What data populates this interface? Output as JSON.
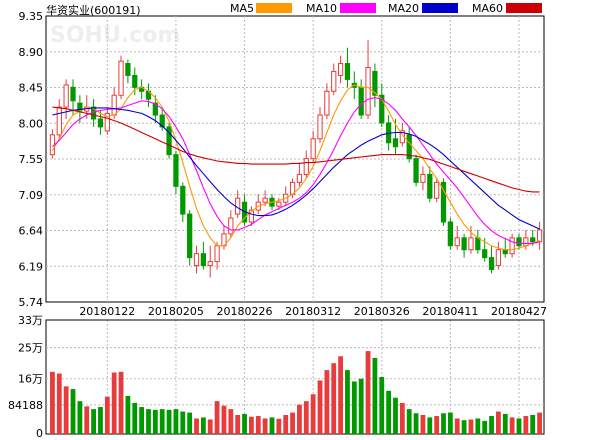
{
  "chart_data": {
    "type": "candlestick",
    "title": "华资实业(600191)",
    "watermark": "SOHU.com",
    "legend": [
      {
        "name": "MA5",
        "color": "#ff9900"
      },
      {
        "name": "MA10",
        "color": "#ff00ff"
      },
      {
        "name": "MA20",
        "color": "#0000cc"
      },
      {
        "name": "MA60",
        "color": "#cc0000"
      }
    ],
    "colors": {
      "up": "#e83c3c",
      "down": "#009900",
      "grid": "#bbbbbb",
      "axis": "#000000"
    },
    "price_ticks": [
      "9.35",
      "8.90",
      "8.45",
      "8.00",
      "7.55",
      "7.09",
      "6.64",
      "6.19",
      "5.74"
    ],
    "price_range": [
      5.74,
      9.35
    ],
    "date_labels": [
      {
        "label": "20180122",
        "index": 8
      },
      {
        "label": "20180205",
        "index": 18
      },
      {
        "label": "20180226",
        "index": 28
      },
      {
        "label": "20180312",
        "index": 38
      },
      {
        "label": "20180326",
        "index": 48
      },
      {
        "label": "20180411",
        "index": 58
      },
      {
        "label": "20180427",
        "index": 68
      }
    ],
    "volume_ticks": [
      "33万",
      "25万",
      "16万",
      "84188",
      "0"
    ],
    "volume_range": [
      0,
      330000
    ],
    "candles": [
      [
        7.6,
        7.85,
        7.55,
        7.92
      ],
      [
        7.85,
        8.2,
        7.8,
        8.3
      ],
      [
        8.2,
        8.48,
        8.05,
        8.55
      ],
      [
        8.45,
        8.28,
        8.1,
        8.55
      ],
      [
        8.25,
        8.15,
        8.0,
        8.35
      ],
      [
        8.15,
        8.2,
        8.05,
        8.35
      ],
      [
        8.2,
        8.05,
        7.95,
        8.3
      ],
      [
        8.05,
        7.95,
        7.85,
        8.15
      ],
      [
        7.9,
        8.12,
        7.85,
        8.2
      ],
      [
        8.1,
        8.35,
        8.05,
        8.45
      ],
      [
        8.35,
        8.78,
        8.3,
        8.85
      ],
      [
        8.75,
        8.6,
        8.5,
        8.8
      ],
      [
        8.6,
        8.45,
        8.35,
        8.7
      ],
      [
        8.45,
        8.4,
        8.3,
        8.55
      ],
      [
        8.4,
        8.3,
        8.2,
        8.5
      ],
      [
        8.25,
        8.1,
        8.0,
        8.35
      ],
      [
        8.1,
        7.95,
        7.9,
        8.2
      ],
      [
        7.95,
        7.6,
        7.55,
        8.0
      ],
      [
        7.6,
        7.2,
        7.1,
        7.65
      ],
      [
        7.2,
        6.85,
        6.75,
        7.25
      ],
      [
        6.85,
        6.3,
        6.2,
        6.9
      ],
      [
        6.2,
        6.35,
        6.1,
        6.45
      ],
      [
        6.35,
        6.2,
        6.15,
        6.5
      ],
      [
        6.2,
        6.25,
        6.05,
        6.45
      ],
      [
        6.25,
        6.45,
        6.15,
        6.5
      ],
      [
        6.45,
        6.6,
        6.4,
        6.7
      ],
      [
        6.6,
        6.8,
        6.55,
        6.9
      ],
      [
        6.85,
        7.05,
        6.8,
        7.15
      ],
      [
        7.0,
        6.75,
        6.7,
        7.1
      ],
      [
        6.75,
        6.9,
        6.7,
        6.95
      ],
      [
        6.9,
        7.0,
        6.85,
        7.1
      ],
      [
        7.0,
        7.05,
        6.95,
        7.15
      ],
      [
        7.05,
        6.95,
        6.9,
        7.1
      ],
      [
        6.95,
        7.0,
        6.9,
        7.05
      ],
      [
        7.0,
        7.1,
        6.95,
        7.2
      ],
      [
        7.1,
        7.25,
        7.05,
        7.3
      ],
      [
        7.25,
        7.35,
        7.2,
        7.5
      ],
      [
        7.35,
        7.55,
        7.3,
        7.65
      ],
      [
        7.55,
        7.8,
        7.5,
        7.9
      ],
      [
        7.8,
        8.1,
        7.75,
        8.2
      ],
      [
        8.1,
        8.4,
        8.05,
        8.5
      ],
      [
        8.4,
        8.65,
        8.35,
        8.75
      ],
      [
        8.6,
        8.75,
        8.5,
        8.85
      ],
      [
        8.75,
        8.55,
        8.45,
        8.95
      ],
      [
        8.5,
        8.45,
        8.3,
        8.65
      ],
      [
        8.45,
        8.1,
        8.05,
        8.55
      ],
      [
        8.1,
        8.7,
        8.05,
        9.05
      ],
      [
        8.65,
        8.35,
        8.2,
        8.75
      ],
      [
        8.35,
        8.0,
        7.95,
        8.5
      ],
      [
        8.0,
        7.75,
        7.65,
        8.1
      ],
      [
        7.8,
        7.7,
        7.6,
        8.05
      ],
      [
        7.75,
        7.9,
        7.7,
        8.0
      ],
      [
        7.85,
        7.55,
        7.5,
        7.95
      ],
      [
        7.55,
        7.25,
        7.2,
        7.6
      ],
      [
        7.25,
        7.35,
        7.15,
        7.45
      ],
      [
        7.35,
        7.05,
        7.0,
        7.45
      ],
      [
        7.05,
        7.25,
        7.0,
        7.3
      ],
      [
        7.25,
        6.75,
        6.7,
        7.3
      ],
      [
        6.75,
        6.45,
        6.4,
        6.8
      ],
      [
        6.45,
        6.55,
        6.4,
        6.7
      ],
      [
        6.55,
        6.4,
        6.3,
        6.6
      ],
      [
        6.4,
        6.55,
        6.35,
        6.7
      ],
      [
        6.55,
        6.4,
        6.35,
        6.65
      ],
      [
        6.4,
        6.3,
        6.25,
        6.55
      ],
      [
        6.3,
        6.15,
        6.1,
        6.45
      ],
      [
        6.2,
        6.4,
        6.15,
        6.5
      ],
      [
        6.4,
        6.35,
        6.3,
        6.55
      ],
      [
        6.35,
        6.55,
        6.3,
        6.6
      ],
      [
        6.55,
        6.45,
        6.4,
        6.6
      ],
      [
        6.45,
        6.55,
        6.4,
        6.65
      ],
      [
        6.55,
        6.5,
        6.45,
        6.65
      ],
      [
        6.5,
        6.65,
        6.4,
        6.75
      ]
    ],
    "volume": [
      180000,
      175000,
      138000,
      130000,
      95000,
      80000,
      72000,
      78000,
      108000,
      178000,
      180000,
      110000,
      90000,
      78000,
      72000,
      70000,
      72000,
      70000,
      72000,
      65000,
      62000,
      45000,
      48000,
      42000,
      95000,
      82000,
      72000,
      55000,
      58000,
      50000,
      52000,
      45000,
      48000,
      44000,
      55000,
      62000,
      85000,
      95000,
      115000,
      155000,
      185000,
      205000,
      225000,
      185000,
      152000,
      160000,
      240000,
      220000,
      165000,
      125000,
      105000,
      90000,
      72000,
      60000,
      55000,
      48000,
      52000,
      60000,
      62000,
      45000,
      40000,
      42000,
      45000,
      38000,
      52000,
      65000,
      58000,
      48000,
      45000,
      52000,
      55000,
      62000
    ],
    "ma_lines": {
      "MA5": [
        7.65,
        7.8,
        7.98,
        8.1,
        8.15,
        8.2,
        8.18,
        8.12,
        8.08,
        8.1,
        8.18,
        8.32,
        8.42,
        8.45,
        8.4,
        8.32,
        8.2,
        8.02,
        7.78,
        7.5,
        7.2,
        6.92,
        6.7,
        6.55,
        6.45,
        6.45,
        6.55,
        6.7,
        6.8,
        6.88,
        6.95,
        6.98,
        7.0,
        7.02,
        7.05,
        7.1,
        7.18,
        7.3,
        7.45,
        7.65,
        7.88,
        8.1,
        8.28,
        8.42,
        8.48,
        8.45,
        8.45,
        8.38,
        8.3,
        8.15,
        7.98,
        7.85,
        7.75,
        7.65,
        7.55,
        7.42,
        7.3,
        7.15,
        7.0,
        6.85,
        6.72,
        6.62,
        6.55,
        6.5,
        6.45,
        6.42,
        6.4,
        6.4,
        6.42,
        6.45,
        6.48,
        6.52
      ],
      "MA10": [
        7.7,
        7.78,
        7.88,
        7.98,
        8.05,
        8.1,
        8.14,
        8.16,
        8.17,
        8.18,
        8.19,
        8.22,
        8.25,
        8.28,
        8.27,
        8.24,
        8.18,
        8.08,
        7.95,
        7.8,
        7.6,
        7.4,
        7.18,
        6.98,
        6.82,
        6.7,
        6.65,
        6.65,
        6.68,
        6.72,
        6.78,
        6.84,
        6.88,
        6.92,
        6.96,
        7.0,
        7.05,
        7.12,
        7.22,
        7.35,
        7.5,
        7.66,
        7.84,
        8.0,
        8.14,
        8.24,
        8.3,
        8.32,
        8.3,
        8.24,
        8.16,
        8.05,
        7.95,
        7.84,
        7.72,
        7.6,
        7.48,
        7.38,
        7.28,
        7.18,
        7.06,
        6.94,
        6.82,
        6.72,
        6.64,
        6.58,
        6.54,
        6.5,
        6.48,
        6.48,
        6.48,
        6.5
      ],
      "MA20": [
        8.1,
        8.12,
        8.14,
        8.16,
        8.17,
        8.18,
        8.19,
        8.19,
        8.19,
        8.18,
        8.17,
        8.16,
        8.14,
        8.12,
        8.08,
        8.03,
        7.96,
        7.88,
        7.78,
        7.68,
        7.57,
        7.46,
        7.36,
        7.26,
        7.16,
        7.07,
        6.99,
        6.93,
        6.88,
        6.85,
        6.83,
        6.83,
        6.84,
        6.87,
        6.91,
        6.96,
        7.02,
        7.09,
        7.17,
        7.26,
        7.35,
        7.44,
        7.52,
        7.6,
        7.66,
        7.72,
        7.77,
        7.81,
        7.85,
        7.87,
        7.88,
        7.88,
        7.86,
        7.83,
        7.78,
        7.73,
        7.67,
        7.6,
        7.52,
        7.44,
        7.36,
        7.28,
        7.2,
        7.12,
        7.04,
        6.96,
        6.9,
        6.84,
        6.78,
        6.74,
        6.7,
        6.66
      ],
      "MA60": [
        8.2,
        8.19,
        8.18,
        8.16,
        8.14,
        8.12,
        8.1,
        8.08,
        8.06,
        8.03,
        8.0,
        7.96,
        7.92,
        7.88,
        7.84,
        7.8,
        7.76,
        7.72,
        7.68,
        7.64,
        7.61,
        7.58,
        7.56,
        7.54,
        7.52,
        7.51,
        7.5,
        7.49,
        7.49,
        7.48,
        7.48,
        7.48,
        7.48,
        7.48,
        7.48,
        7.49,
        7.49,
        7.5,
        7.5,
        7.51,
        7.52,
        7.53,
        7.54,
        7.55,
        7.56,
        7.57,
        7.58,
        7.59,
        7.6,
        7.6,
        7.6,
        7.6,
        7.59,
        7.58,
        7.56,
        7.54,
        7.51,
        7.48,
        7.45,
        7.42,
        7.39,
        7.36,
        7.33,
        7.3,
        7.27,
        7.24,
        7.21,
        7.18,
        7.16,
        7.14,
        7.13,
        7.13
      ]
    }
  }
}
